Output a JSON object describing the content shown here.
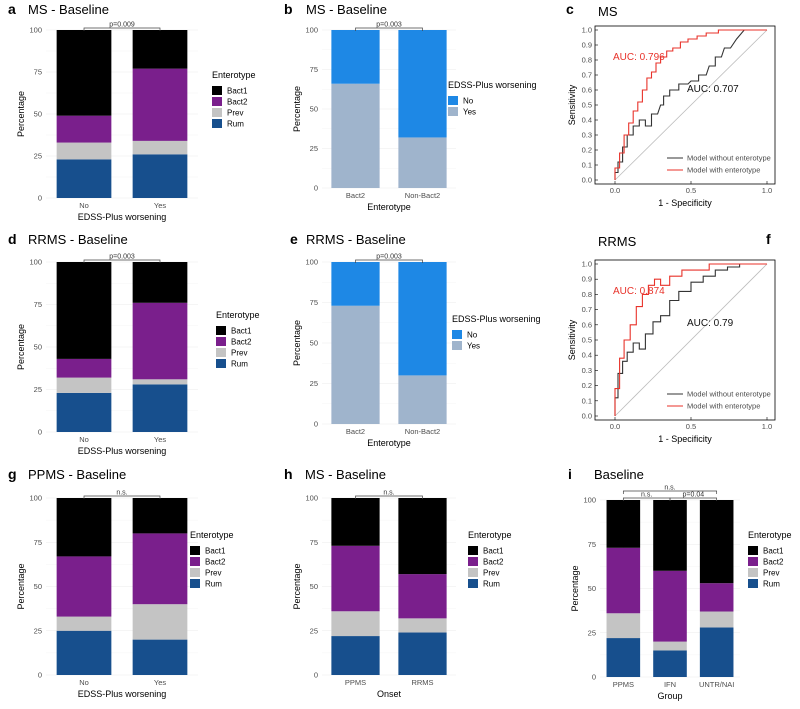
{
  "colors": {
    "Bact1": "#000000",
    "Bact2": "#7a1f8c",
    "Prev": "#c4c4c4",
    "Rum": "#174f8d",
    "No": "#1e88e5",
    "Yes": "#9fb4cc",
    "model_without": "#333333",
    "model_with": "#e8322a",
    "diagonal": "#bdbdbd"
  },
  "chart_data": [
    {
      "panel": "a",
      "type": "bar",
      "title": "MS - Baseline",
      "categories": [
        "No",
        "Yes"
      ],
      "xlabel": "EDSS-Plus worsening",
      "ylabel": "Percentage",
      "ylim": [
        0,
        100
      ],
      "yticks": [
        0,
        25,
        50,
        75,
        100
      ],
      "legend_title": "Enterotype",
      "series": [
        {
          "name": "Rum",
          "values": [
            23,
            26
          ]
        },
        {
          "name": "Prev",
          "values": [
            10,
            8
          ]
        },
        {
          "name": "Bact2",
          "values": [
            16,
            43
          ]
        },
        {
          "name": "Bact1",
          "values": [
            51,
            23
          ]
        }
      ],
      "brackets": [
        {
          "from": 0,
          "to": 1,
          "label": "p=0.009"
        }
      ]
    },
    {
      "panel": "b",
      "type": "bar",
      "title": "MS - Baseline",
      "categories": [
        "Bact2",
        "Non-Bact2"
      ],
      "xlabel": "Enterotype",
      "ylabel": "Percentage",
      "ylim": [
        0,
        100
      ],
      "yticks": [
        0,
        25,
        50,
        75,
        100
      ],
      "legend_title": "EDSS-Plus worsening",
      "series": [
        {
          "name": "Yes",
          "values": [
            66,
            32
          ]
        },
        {
          "name": "No",
          "values": [
            34,
            68
          ]
        }
      ],
      "brackets": [
        {
          "from": 0,
          "to": 1,
          "label": "p=0.003"
        }
      ]
    },
    {
      "panel": "c",
      "type": "line",
      "title": "MS",
      "xlabel": "1 - Specificity",
      "ylabel": "Sensitivity",
      "xlim": [
        0,
        1
      ],
      "ylim": [
        0,
        1
      ],
      "xticks": [
        "0.0",
        "0.5",
        "1.0"
      ],
      "yticks": [
        "0.0",
        "0.1",
        "0.2",
        "0.3",
        "0.4",
        "0.5",
        "0.6",
        "0.7",
        "0.8",
        "0.9",
        "1.0"
      ],
      "series": [
        {
          "name": "Model without enterotype",
          "x": [
            0,
            0,
            0.02,
            0.02,
            0.05,
            0.05,
            0.08,
            0.08,
            0.12,
            0.12,
            0.16,
            0.16,
            0.2,
            0.2,
            0.24,
            0.24,
            0.28,
            0.3,
            0.32,
            0.32,
            0.36,
            0.36,
            0.42,
            0.42,
            0.48,
            0.5,
            0.55,
            0.55,
            0.6,
            0.62,
            0.66,
            0.66,
            0.7,
            0.72,
            0.76,
            0.8,
            0.85,
            1.0
          ],
          "y": [
            0,
            0.05,
            0.05,
            0.12,
            0.12,
            0.22,
            0.22,
            0.3,
            0.3,
            0.36,
            0.36,
            0.4,
            0.4,
            0.36,
            0.36,
            0.44,
            0.44,
            0.5,
            0.5,
            0.56,
            0.56,
            0.6,
            0.6,
            0.64,
            0.64,
            0.66,
            0.66,
            0.7,
            0.7,
            0.76,
            0.76,
            0.82,
            0.82,
            0.88,
            0.88,
            0.94,
            1.0,
            1.0
          ]
        },
        {
          "name": "Model with enterotype",
          "x": [
            0,
            0,
            0.03,
            0.03,
            0.06,
            0.06,
            0.09,
            0.09,
            0.12,
            0.12,
            0.15,
            0.15,
            0.18,
            0.18,
            0.21,
            0.21,
            0.24,
            0.24,
            0.27,
            0.27,
            0.3,
            0.3,
            0.34,
            0.34,
            0.38,
            0.38,
            0.43,
            0.43,
            0.48,
            0.48,
            0.54,
            0.54,
            0.6,
            0.6,
            0.68,
            0.68,
            0.8,
            1.0
          ],
          "y": [
            0,
            0.08,
            0.08,
            0.18,
            0.18,
            0.3,
            0.3,
            0.38,
            0.38,
            0.46,
            0.46,
            0.52,
            0.52,
            0.6,
            0.6,
            0.68,
            0.68,
            0.72,
            0.72,
            0.78,
            0.78,
            0.82,
            0.82,
            0.86,
            0.86,
            0.88,
            0.88,
            0.92,
            0.92,
            0.94,
            0.94,
            0.96,
            0.96,
            0.98,
            0.98,
            1.0,
            1.0,
            1.0
          ]
        }
      ],
      "annotations": [
        {
          "text": "AUC: 0.796",
          "series": "Model with enterotype"
        },
        {
          "text": "AUC: 0.707",
          "series": "Model without enterotype"
        }
      ]
    },
    {
      "panel": "d",
      "type": "bar",
      "title": "RRMS - Baseline",
      "categories": [
        "No",
        "Yes"
      ],
      "xlabel": "EDSS-Plus worsening",
      "ylabel": "Percentage",
      "ylim": [
        0,
        100
      ],
      "yticks": [
        0,
        25,
        50,
        75,
        100
      ],
      "legend_title": "Enterotype",
      "series": [
        {
          "name": "Rum",
          "values": [
            23,
            28
          ]
        },
        {
          "name": "Prev",
          "values": [
            9,
            3
          ]
        },
        {
          "name": "Bact2",
          "values": [
            11,
            45
          ]
        },
        {
          "name": "Bact1",
          "values": [
            57,
            24
          ]
        }
      ],
      "brackets": [
        {
          "from": 0,
          "to": 1,
          "label": "p=0.003"
        }
      ]
    },
    {
      "panel": "e",
      "type": "bar",
      "title": "RRMS - Baseline",
      "categories": [
        "Bact2",
        "Non-Bact2"
      ],
      "xlabel": "Enterotype",
      "ylabel": "Percentage",
      "ylim": [
        0,
        100
      ],
      "yticks": [
        0,
        25,
        50,
        75,
        100
      ],
      "legend_title": "EDSS-Plus worsening",
      "series": [
        {
          "name": "Yes",
          "values": [
            73,
            30
          ]
        },
        {
          "name": "No",
          "values": [
            27,
            70
          ]
        }
      ],
      "brackets": [
        {
          "from": 0,
          "to": 1,
          "label": "p=0.003"
        }
      ]
    },
    {
      "panel": "f",
      "type": "line",
      "title": "RRMS",
      "xlabel": "1 - Specificity",
      "ylabel": "Sensitivity",
      "xlim": [
        0,
        1
      ],
      "ylim": [
        0,
        1
      ],
      "xticks": [
        "0.0",
        "0.5",
        "1.0"
      ],
      "yticks": [
        "0.0",
        "0.1",
        "0.2",
        "0.3",
        "0.4",
        "0.5",
        "0.6",
        "0.7",
        "0.8",
        "0.9",
        "1.0"
      ],
      "series": [
        {
          "name": "Model without enterotype",
          "x": [
            0,
            0,
            0.02,
            0.02,
            0.05,
            0.05,
            0.08,
            0.08,
            0.12,
            0.12,
            0.16,
            0.16,
            0.2,
            0.2,
            0.25,
            0.25,
            0.3,
            0.3,
            0.36,
            0.36,
            0.42,
            0.42,
            0.5,
            0.5,
            0.58,
            0.58,
            0.66,
            0.66,
            0.74,
            0.74,
            0.82,
            0.82,
            1.0
          ],
          "y": [
            0,
            0.12,
            0.12,
            0.28,
            0.28,
            0.36,
            0.36,
            0.42,
            0.42,
            0.48,
            0.48,
            0.44,
            0.44,
            0.54,
            0.54,
            0.62,
            0.62,
            0.66,
            0.66,
            0.76,
            0.76,
            0.82,
            0.82,
            0.88,
            0.88,
            0.92,
            0.92,
            0.96,
            0.96,
            0.98,
            0.98,
            1.0,
            1.0
          ]
        },
        {
          "name": "Model with enterotype",
          "x": [
            0,
            0,
            0.03,
            0.03,
            0.06,
            0.06,
            0.1,
            0.1,
            0.14,
            0.14,
            0.18,
            0.18,
            0.22,
            0.22,
            0.26,
            0.26,
            0.3,
            0.3,
            0.36,
            0.36,
            0.44,
            0.44,
            0.52,
            0.52,
            0.62,
            0.62,
            0.72,
            0.72,
            1.0
          ],
          "y": [
            0,
            0.18,
            0.18,
            0.38,
            0.38,
            0.5,
            0.5,
            0.6,
            0.6,
            0.72,
            0.72,
            0.8,
            0.8,
            0.86,
            0.86,
            0.9,
            0.9,
            0.86,
            0.86,
            0.92,
            0.92,
            0.96,
            0.96,
            0.96,
            0.96,
            1.0,
            1.0,
            1.0,
            1.0
          ]
        }
      ],
      "annotations": [
        {
          "text": "AUC: 0.874",
          "series": "Model with enterotype"
        },
        {
          "text": "AUC: 0.79",
          "series": "Model without enterotype"
        }
      ]
    },
    {
      "panel": "g",
      "type": "bar",
      "title": "PPMS - Baseline",
      "categories": [
        "No",
        "Yes"
      ],
      "xlabel": "EDSS-Plus worsening",
      "ylabel": "Percentage",
      "ylim": [
        0,
        100
      ],
      "yticks": [
        0,
        25,
        50,
        75,
        100
      ],
      "legend_title": "Enterotype",
      "series": [
        {
          "name": "Rum",
          "values": [
            25,
            20
          ]
        },
        {
          "name": "Prev",
          "values": [
            8,
            20
          ]
        },
        {
          "name": "Bact2",
          "values": [
            34,
            40
          ]
        },
        {
          "name": "Bact1",
          "values": [
            33,
            20
          ]
        }
      ],
      "brackets": [
        {
          "from": 0,
          "to": 1,
          "label": "n.s."
        }
      ]
    },
    {
      "panel": "h",
      "type": "bar",
      "title": "MS - Baseline",
      "categories": [
        "PPMS",
        "RRMS"
      ],
      "xlabel": "Onset",
      "ylabel": "Percentage",
      "ylim": [
        0,
        100
      ],
      "yticks": [
        0,
        25,
        50,
        75,
        100
      ],
      "legend_title": "Enterotype",
      "series": [
        {
          "name": "Rum",
          "values": [
            22,
            24
          ]
        },
        {
          "name": "Prev",
          "values": [
            14,
            8
          ]
        },
        {
          "name": "Bact2",
          "values": [
            37,
            25
          ]
        },
        {
          "name": "Bact1",
          "values": [
            27,
            43
          ]
        }
      ],
      "brackets": [
        {
          "from": 0,
          "to": 1,
          "label": "n.s."
        }
      ]
    },
    {
      "panel": "i",
      "type": "bar",
      "title": "Baseline",
      "categories": [
        "PPMS",
        "IFN",
        "UNTR/NAI"
      ],
      "xlabel": "Group",
      "ylabel": "Percentage",
      "ylim": [
        0,
        100
      ],
      "yticks": [
        0,
        25,
        50,
        75,
        100
      ],
      "legend_title": "Enterotype",
      "series": [
        {
          "name": "Rum",
          "values": [
            22,
            15,
            28
          ]
        },
        {
          "name": "Prev",
          "values": [
            14,
            5,
            9
          ]
        },
        {
          "name": "Bact2",
          "values": [
            37,
            40,
            16
          ]
        },
        {
          "name": "Bact1",
          "values": [
            27,
            40,
            47
          ]
        }
      ],
      "brackets": [
        {
          "from": 0,
          "to": 2,
          "label": "n.s.",
          "level": 2
        },
        {
          "from": 0,
          "to": 1,
          "label": "n.s.",
          "level": 1
        },
        {
          "from": 1,
          "to": 2,
          "label": "p=0.04",
          "level": 1
        }
      ]
    }
  ]
}
